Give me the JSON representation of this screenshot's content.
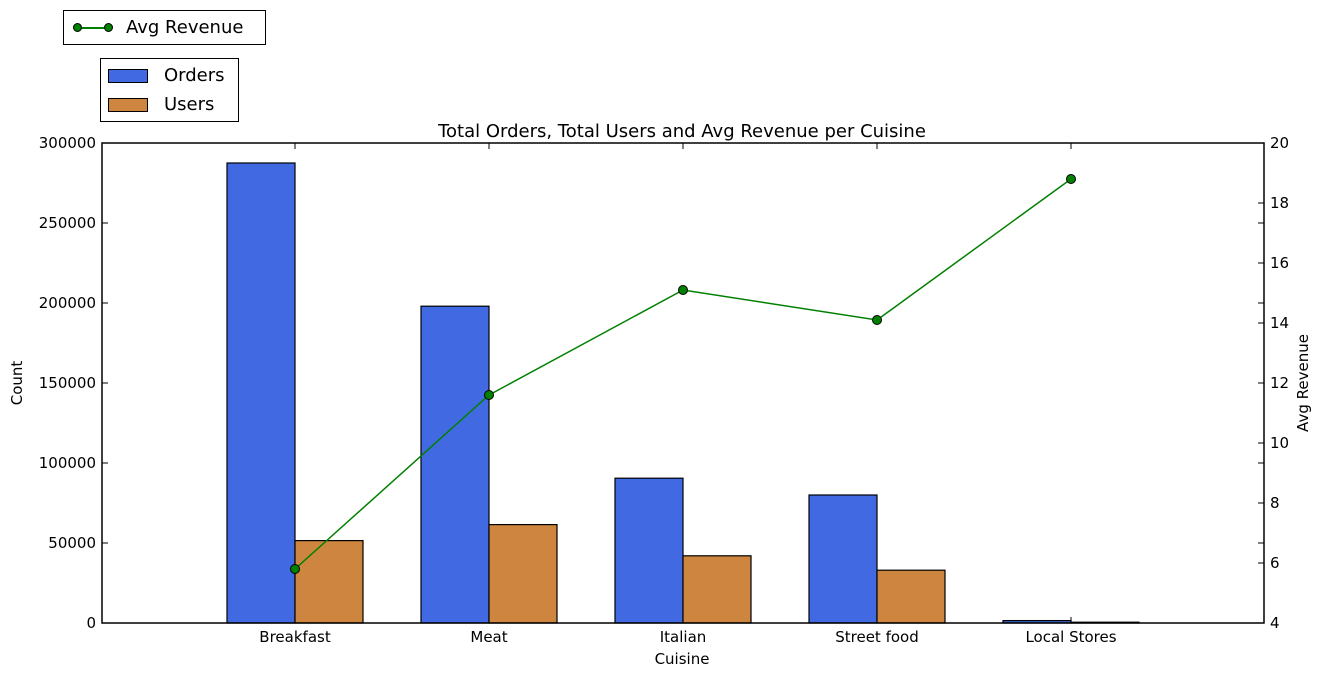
{
  "chart_data": {
    "type": "bar",
    "title": "Total Orders, Total Users and Avg Revenue per Cuisine",
    "xlabel": "Cuisine",
    "ylabel": "Count",
    "y2label": "Avg Revenue",
    "categories": [
      "Breakfast",
      "Meat",
      "Italian",
      "Street food",
      "Local Stores"
    ],
    "series": [
      {
        "name": "Orders",
        "type": "bar",
        "axis": "left",
        "color": "#4169e1",
        "values": [
          287500,
          198000,
          90500,
          80000,
          1500
        ]
      },
      {
        "name": "Users",
        "type": "bar",
        "axis": "left",
        "color": "#cd853f",
        "values": [
          51500,
          61500,
          42000,
          33000,
          500
        ]
      },
      {
        "name": "Avg Revenue",
        "type": "line",
        "axis": "right",
        "color": "#008000",
        "values": [
          5.8,
          11.6,
          15.1,
          14.1,
          18.8
        ]
      }
    ],
    "ylim": [
      0,
      300000
    ],
    "y2lim": [
      4,
      20
    ],
    "yticks": [
      "0",
      "50000",
      "100000",
      "150000",
      "200000",
      "250000",
      "300000"
    ],
    "y2ticks": [
      "4",
      "6",
      "8",
      "10",
      "12",
      "14",
      "16",
      "18",
      "20"
    ],
    "grid": false,
    "legend": {
      "line_placement": "top-left, above plot",
      "bar_placement": "top-left, above plot"
    }
  }
}
